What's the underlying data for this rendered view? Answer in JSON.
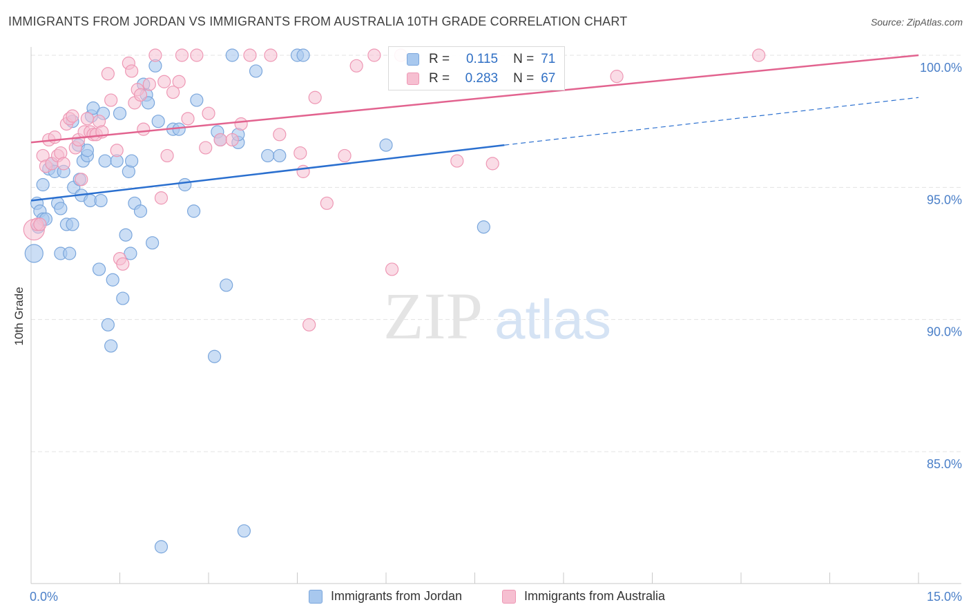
{
  "header": {
    "title": "IMMIGRANTS FROM JORDAN VS IMMIGRANTS FROM AUSTRALIA 10TH GRADE CORRELATION CHART",
    "source": "Source: ZipAtlas.com"
  },
  "watermark": {
    "zip": "ZIP",
    "atlas": "atlas"
  },
  "legend": {
    "r_label": "R =",
    "n_label": "N =",
    "jordan": {
      "r": "0.115",
      "n": "71"
    },
    "australia": {
      "r": "0.283",
      "n": "67"
    }
  },
  "colors": {
    "jordan_fill": "#a8c8ee",
    "jordan_stroke": "#7aa6dc",
    "jordan_line": "#2a6fcf",
    "australia_fill": "#f6bfd1",
    "australia_stroke": "#ee97b4",
    "australia_line": "#e2638f",
    "axis_text": "#4a7fc8"
  },
  "chart_data": {
    "type": "scatter",
    "title": "IMMIGRANTS FROM JORDAN VS IMMIGRANTS FROM AUSTRALIA 10TH GRADE CORRELATION CHART",
    "xlabel": "",
    "ylabel": "10th Grade",
    "xlim": [
      0,
      15
    ],
    "ylim": [
      80.5,
      100.5
    ],
    "x_tick_labels": [
      "0.0%",
      "15.0%"
    ],
    "y_ticks": [
      85,
      90,
      95,
      100
    ],
    "y_tick_labels": [
      "85.0%",
      "90.0%",
      "95.0%",
      "100.0%"
    ],
    "grid": true,
    "legend_position": "top-center",
    "series": [
      {
        "name": "Immigrants from Jordan",
        "r": 0.115,
        "n": 71,
        "trend": {
          "x0": 0.0,
          "y0": 94.5,
          "x1": 8.0,
          "y1": 96.6,
          "dashed_to_x": 15.0,
          "dashed_to_y": 98.4
        },
        "points": [
          [
            0.05,
            92.5
          ],
          [
            0.1,
            94.4
          ],
          [
            0.12,
            93.5
          ],
          [
            0.15,
            94.1
          ],
          [
            0.2,
            95.1
          ],
          [
            0.2,
            93.8
          ],
          [
            0.25,
            93.8
          ],
          [
            0.3,
            95.7
          ],
          [
            0.35,
            95.9
          ],
          [
            0.4,
            95.6
          ],
          [
            0.45,
            94.4
          ],
          [
            0.5,
            92.5
          ],
          [
            0.5,
            94.2
          ],
          [
            0.55,
            95.6
          ],
          [
            0.6,
            93.6
          ],
          [
            0.65,
            92.5
          ],
          [
            0.7,
            93.6
          ],
          [
            0.7,
            97.5
          ],
          [
            0.72,
            95.0
          ],
          [
            0.8,
            96.6
          ],
          [
            0.82,
            95.3
          ],
          [
            0.85,
            94.7
          ],
          [
            0.88,
            96.0
          ],
          [
            0.95,
            96.2
          ],
          [
            0.95,
            96.4
          ],
          [
            1.0,
            94.5
          ],
          [
            1.02,
            97.7
          ],
          [
            1.05,
            98.0
          ],
          [
            1.15,
            91.9
          ],
          [
            1.18,
            94.5
          ],
          [
            1.22,
            97.8
          ],
          [
            1.25,
            96.0
          ],
          [
            1.3,
            89.8
          ],
          [
            1.35,
            89.0
          ],
          [
            1.38,
            91.5
          ],
          [
            1.45,
            96.0
          ],
          [
            1.5,
            97.8
          ],
          [
            1.55,
            90.8
          ],
          [
            1.6,
            93.2
          ],
          [
            1.65,
            95.6
          ],
          [
            1.68,
            92.5
          ],
          [
            1.7,
            96.0
          ],
          [
            1.75,
            94.4
          ],
          [
            1.85,
            94.1
          ],
          [
            1.9,
            98.9
          ],
          [
            1.95,
            98.5
          ],
          [
            1.98,
            98.2
          ],
          [
            2.05,
            92.9
          ],
          [
            2.1,
            99.6
          ],
          [
            2.15,
            97.5
          ],
          [
            2.2,
            81.4
          ],
          [
            2.4,
            97.2
          ],
          [
            2.5,
            97.2
          ],
          [
            2.6,
            95.1
          ],
          [
            2.75,
            94.1
          ],
          [
            2.8,
            98.3
          ],
          [
            3.1,
            88.6
          ],
          [
            3.15,
            97.1
          ],
          [
            3.2,
            96.8
          ],
          [
            3.3,
            91.3
          ],
          [
            3.4,
            100.0
          ],
          [
            3.5,
            96.7
          ],
          [
            3.5,
            97.0
          ],
          [
            3.6,
            82.0
          ],
          [
            3.8,
            99.4
          ],
          [
            4.0,
            96.2
          ],
          [
            4.2,
            96.2
          ],
          [
            4.5,
            100.0
          ],
          [
            4.6,
            100.0
          ],
          [
            6.0,
            96.6
          ],
          [
            7.65,
            93.5
          ]
        ]
      },
      {
        "name": "Immigrants from Australia",
        "r": 0.283,
        "n": 67,
        "trend": {
          "x0": 0.0,
          "y0": 96.7,
          "x1": 15.0,
          "y1": 100.0
        },
        "points": [
          [
            0.05,
            93.4
          ],
          [
            0.1,
            93.6
          ],
          [
            0.15,
            93.6
          ],
          [
            0.2,
            96.2
          ],
          [
            0.25,
            95.8
          ],
          [
            0.3,
            96.8
          ],
          [
            0.35,
            95.9
          ],
          [
            0.4,
            96.9
          ],
          [
            0.45,
            96.2
          ],
          [
            0.5,
            96.3
          ],
          [
            0.55,
            95.9
          ],
          [
            0.6,
            97.4
          ],
          [
            0.65,
            97.6
          ],
          [
            0.7,
            97.7
          ],
          [
            0.75,
            96.5
          ],
          [
            0.8,
            96.8
          ],
          [
            0.85,
            95.3
          ],
          [
            0.9,
            97.1
          ],
          [
            0.95,
            97.6
          ],
          [
            1.0,
            97.1
          ],
          [
            1.05,
            97.0
          ],
          [
            1.1,
            97.0
          ],
          [
            1.15,
            97.5
          ],
          [
            1.2,
            97.1
          ],
          [
            1.3,
            99.3
          ],
          [
            1.35,
            98.3
          ],
          [
            1.45,
            96.4
          ],
          [
            1.5,
            92.3
          ],
          [
            1.55,
            92.1
          ],
          [
            1.65,
            99.7
          ],
          [
            1.7,
            99.4
          ],
          [
            1.75,
            98.2
          ],
          [
            1.8,
            98.7
          ],
          [
            1.85,
            98.5
          ],
          [
            1.9,
            97.2
          ],
          [
            2.0,
            98.9
          ],
          [
            2.1,
            100.0
          ],
          [
            2.2,
            94.6
          ],
          [
            2.25,
            99.0
          ],
          [
            2.3,
            96.2
          ],
          [
            2.4,
            98.6
          ],
          [
            2.5,
            99.0
          ],
          [
            2.55,
            100.0
          ],
          [
            2.65,
            97.6
          ],
          [
            2.8,
            100.0
          ],
          [
            2.95,
            96.5
          ],
          [
            3.0,
            97.8
          ],
          [
            3.2,
            96.8
          ],
          [
            3.4,
            96.8
          ],
          [
            3.55,
            97.4
          ],
          [
            3.7,
            100.0
          ],
          [
            4.05,
            100.0
          ],
          [
            4.2,
            97.0
          ],
          [
            4.55,
            96.3
          ],
          [
            4.6,
            95.6
          ],
          [
            4.7,
            89.8
          ],
          [
            4.8,
            98.4
          ],
          [
            5.0,
            94.4
          ],
          [
            5.3,
            96.2
          ],
          [
            5.5,
            99.6
          ],
          [
            5.8,
            100.0
          ],
          [
            6.1,
            91.9
          ],
          [
            6.25,
            100.0
          ],
          [
            7.2,
            96.0
          ],
          [
            7.8,
            95.9
          ],
          [
            9.9,
            99.2
          ],
          [
            12.3,
            100.0
          ]
        ]
      }
    ]
  },
  "bottom_legend": {
    "jordan": "Immigrants from Jordan",
    "australia": "Immigrants from Australia"
  }
}
